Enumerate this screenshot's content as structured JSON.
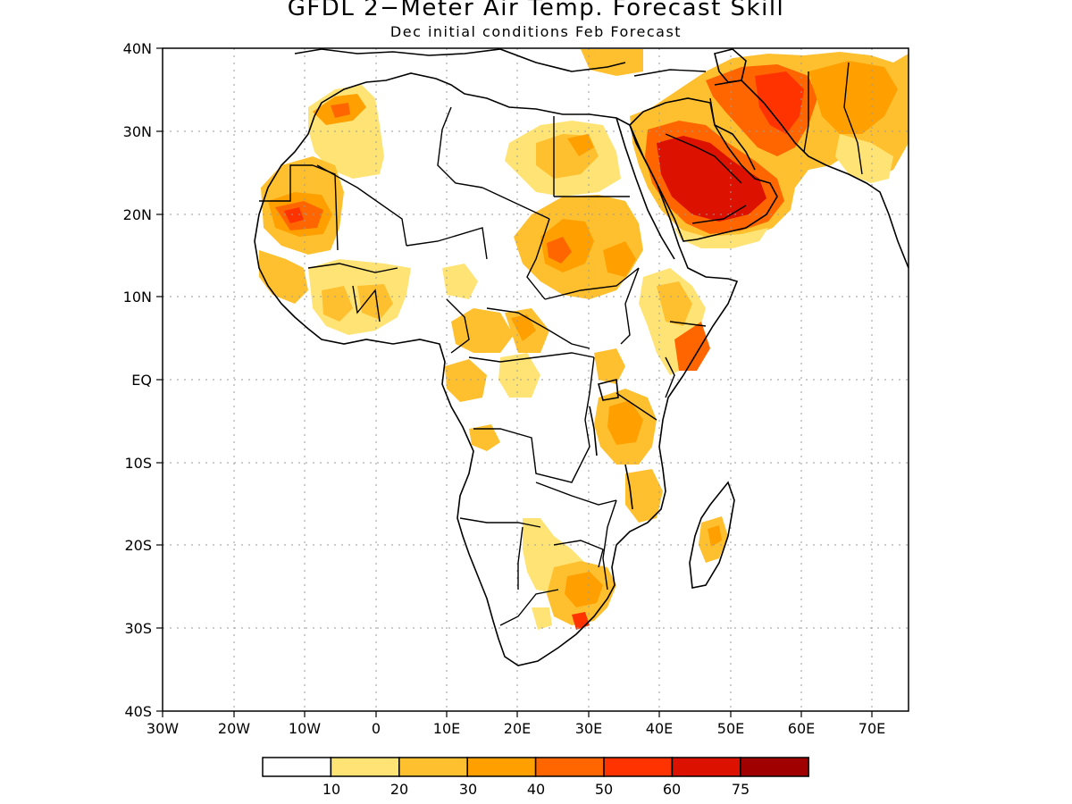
{
  "title": "GFDL 2−Meter Air Temp. Forecast Skill",
  "subtitle": "Dec initial conditions  Feb Forecast",
  "y_ticks": [
    "40N",
    "30N",
    "20N",
    "10N",
    "EQ",
    "10S",
    "20S",
    "30S",
    "40S"
  ],
  "x_ticks": [
    "30W",
    "20W",
    "10W",
    "0",
    "10E",
    "20E",
    "30E",
    "40E",
    "50E",
    "60E",
    "70E"
  ],
  "legend": {
    "labels": [
      "10",
      "20",
      "30",
      "40",
      "50",
      "60",
      "75"
    ],
    "colors": [
      "#ffffff",
      "#ffe475",
      "#ffc030",
      "#ffa000",
      "#ff6600",
      "#ff3300",
      "#dd1100",
      "#a00000"
    ]
  },
  "chart_data": {
    "type": "heatmap",
    "title": "GFDL 2−Meter Air Temp. Forecast Skill",
    "subtitle": "Dec initial conditions  Feb Forecast",
    "x_range": [
      "30W",
      "75E"
    ],
    "y_range": [
      "40S",
      "40N"
    ],
    "grid": true,
    "levels": [
      10,
      20,
      30,
      40,
      50,
      60,
      75
    ],
    "regions": [
      {
        "area": "Arabian Peninsula",
        "skill": "60-75"
      },
      {
        "area": "Iran",
        "skill": "40-60"
      },
      {
        "area": "Western Sahara / Mauritania",
        "skill": "30-60"
      },
      {
        "area": "Sudan",
        "skill": "20-50"
      },
      {
        "area": "Egypt",
        "skill": "20-40"
      },
      {
        "area": "Northwest Africa",
        "skill": "20-50"
      },
      {
        "area": "East Africa",
        "skill": "20-50"
      },
      {
        "area": "Southern Africa",
        "skill": "20-60"
      },
      {
        "area": "Madagascar",
        "skill": "20-40"
      }
    ]
  }
}
